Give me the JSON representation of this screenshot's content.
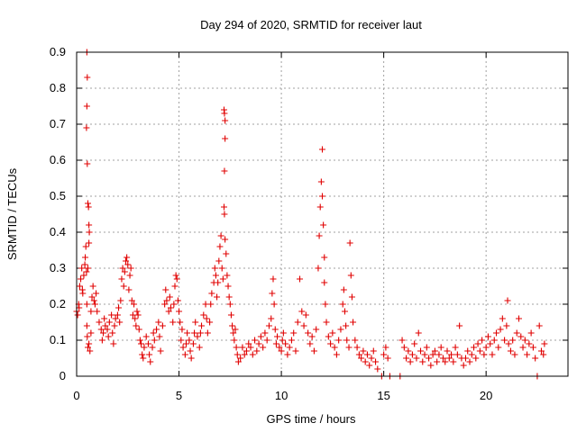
{
  "chart_data": {
    "type": "scatter",
    "title": "Day 294 of 2020, SRMTID for receiver laut",
    "xlabel": "GPS time / hours",
    "ylabel": "SRMTID / TECUs",
    "xlim": [
      0,
      24
    ],
    "ylim": [
      0,
      0.9
    ],
    "xticks": [
      0,
      5,
      10,
      15,
      20
    ],
    "xtick_labels": [
      "0",
      "5",
      "10",
      "15",
      "20"
    ],
    "yticks": [
      0,
      0.1,
      0.2,
      0.3,
      0.4,
      0.5,
      0.6,
      0.7,
      0.8,
      0.9
    ],
    "ytick_labels": [
      "0",
      "0.1",
      "0.2",
      "0.3",
      "0.4",
      "0.5",
      "0.6",
      "0.7",
      "0.8",
      "0.9"
    ],
    "grid": true,
    "marker": "plus",
    "color": "#e00000",
    "series": [
      {
        "name": "SRMTID",
        "points": [
          [
            0.0,
            0.18
          ],
          [
            0.05,
            0.17
          ],
          [
            0.1,
            0.2
          ],
          [
            0.12,
            0.19
          ],
          [
            0.15,
            0.25
          ],
          [
            0.2,
            0.27
          ],
          [
            0.25,
            0.3
          ],
          [
            0.28,
            0.24
          ],
          [
            0.3,
            0.23
          ],
          [
            0.35,
            0.28
          ],
          [
            0.4,
            0.31
          ],
          [
            0.42,
            0.33
          ],
          [
            0.45,
            0.36
          ],
          [
            0.48,
            0.29
          ],
          [
            0.5,
            0.9
          ],
          [
            0.52,
            0.83
          ],
          [
            0.5,
            0.75
          ],
          [
            0.48,
            0.69
          ],
          [
            0.52,
            0.59
          ],
          [
            0.55,
            0.48
          ],
          [
            0.58,
            0.47
          ],
          [
            0.6,
            0.42
          ],
          [
            0.62,
            0.4
          ],
          [
            0.6,
            0.37
          ],
          [
            0.55,
            0.3
          ],
          [
            0.5,
            0.2
          ],
          [
            0.5,
            0.14
          ],
          [
            0.52,
            0.11
          ],
          [
            0.55,
            0.08
          ],
          [
            0.6,
            0.09
          ],
          [
            0.65,
            0.07
          ],
          [
            0.7,
            0.12
          ],
          [
            0.7,
            0.18
          ],
          [
            0.75,
            0.22
          ],
          [
            0.8,
            0.25
          ],
          [
            0.85,
            0.21
          ],
          [
            0.9,
            0.2
          ],
          [
            0.95,
            0.23
          ],
          [
            1.0,
            0.18
          ],
          [
            1.1,
            0.15
          ],
          [
            1.2,
            0.13
          ],
          [
            1.25,
            0.1
          ],
          [
            1.3,
            0.12
          ],
          [
            1.35,
            0.16
          ],
          [
            1.4,
            0.14
          ],
          [
            1.5,
            0.13
          ],
          [
            1.55,
            0.11
          ],
          [
            1.6,
            0.15
          ],
          [
            1.7,
            0.17
          ],
          [
            1.75,
            0.12
          ],
          [
            1.8,
            0.09
          ],
          [
            1.85,
            0.14
          ],
          [
            1.9,
            0.16
          ],
          [
            2.0,
            0.17
          ],
          [
            2.05,
            0.19
          ],
          [
            2.1,
            0.15
          ],
          [
            2.15,
            0.21
          ],
          [
            2.2,
            0.27
          ],
          [
            2.25,
            0.3
          ],
          [
            2.3,
            0.25
          ],
          [
            2.35,
            0.29
          ],
          [
            2.4,
            0.32
          ],
          [
            2.45,
            0.33
          ],
          [
            2.5,
            0.31
          ],
          [
            2.55,
            0.24
          ],
          [
            2.6,
            0.28
          ],
          [
            2.65,
            0.3
          ],
          [
            2.7,
            0.21
          ],
          [
            2.75,
            0.17
          ],
          [
            2.8,
            0.2
          ],
          [
            2.85,
            0.16
          ],
          [
            2.9,
            0.14
          ],
          [
            2.95,
            0.18
          ],
          [
            3.0,
            0.17
          ],
          [
            3.05,
            0.13
          ],
          [
            3.1,
            0.1
          ],
          [
            3.15,
            0.09
          ],
          [
            3.2,
            0.06
          ],
          [
            3.25,
            0.05
          ],
          [
            3.3,
            0.08
          ],
          [
            3.4,
            0.11
          ],
          [
            3.5,
            0.09
          ],
          [
            3.55,
            0.06
          ],
          [
            3.6,
            0.04
          ],
          [
            3.7,
            0.08
          ],
          [
            3.75,
            0.12
          ],
          [
            3.8,
            0.1
          ],
          [
            3.9,
            0.13
          ],
          [
            4.0,
            0.15
          ],
          [
            4.05,
            0.11
          ],
          [
            4.1,
            0.07
          ],
          [
            4.2,
            0.14
          ],
          [
            4.3,
            0.2
          ],
          [
            4.35,
            0.24
          ],
          [
            4.4,
            0.21
          ],
          [
            4.5,
            0.18
          ],
          [
            4.55,
            0.22
          ],
          [
            4.6,
            0.19
          ],
          [
            4.7,
            0.15
          ],
          [
            4.75,
            0.2
          ],
          [
            4.8,
            0.25
          ],
          [
            4.85,
            0.28
          ],
          [
            4.9,
            0.27
          ],
          [
            4.95,
            0.21
          ],
          [
            5.0,
            0.18
          ],
          [
            5.05,
            0.15
          ],
          [
            5.1,
            0.1
          ],
          [
            5.15,
            0.13
          ],
          [
            5.2,
            0.08
          ],
          [
            5.3,
            0.06
          ],
          [
            5.35,
            0.09
          ],
          [
            5.4,
            0.12
          ],
          [
            5.5,
            0.1
          ],
          [
            5.55,
            0.07
          ],
          [
            5.6,
            0.05
          ],
          [
            5.7,
            0.09
          ],
          [
            5.75,
            0.12
          ],
          [
            5.8,
            0.15
          ],
          [
            5.9,
            0.11
          ],
          [
            6.0,
            0.08
          ],
          [
            6.05,
            0.12
          ],
          [
            6.1,
            0.14
          ],
          [
            6.2,
            0.17
          ],
          [
            6.3,
            0.2
          ],
          [
            6.35,
            0.16
          ],
          [
            6.4,
            0.12
          ],
          [
            6.5,
            0.15
          ],
          [
            6.55,
            0.2
          ],
          [
            6.6,
            0.23
          ],
          [
            6.7,
            0.26
          ],
          [
            6.75,
            0.3
          ],
          [
            6.8,
            0.28
          ],
          [
            6.85,
            0.22
          ],
          [
            6.9,
            0.26
          ],
          [
            6.95,
            0.32
          ],
          [
            7.0,
            0.36
          ],
          [
            7.05,
            0.39
          ],
          [
            7.1,
            0.3
          ],
          [
            7.15,
            0.27
          ],
          [
            7.2,
            0.74
          ],
          [
            7.22,
            0.73
          ],
          [
            7.25,
            0.71
          ],
          [
            7.25,
            0.66
          ],
          [
            7.22,
            0.57
          ],
          [
            7.2,
            0.47
          ],
          [
            7.22,
            0.45
          ],
          [
            7.25,
            0.38
          ],
          [
            7.3,
            0.34
          ],
          [
            7.35,
            0.28
          ],
          [
            7.4,
            0.25
          ],
          [
            7.45,
            0.22
          ],
          [
            7.5,
            0.2
          ],
          [
            7.55,
            0.17
          ],
          [
            7.6,
            0.14
          ],
          [
            7.65,
            0.12
          ],
          [
            7.7,
            0.1
          ],
          [
            7.75,
            0.13
          ],
          [
            7.8,
            0.08
          ],
          [
            7.85,
            0.06
          ],
          [
            7.9,
            0.04
          ],
          [
            8.0,
            0.05
          ],
          [
            8.1,
            0.08
          ],
          [
            8.2,
            0.06
          ],
          [
            8.3,
            0.07
          ],
          [
            8.4,
            0.09
          ],
          [
            8.5,
            0.08
          ],
          [
            8.6,
            0.06
          ],
          [
            8.7,
            0.1
          ],
          [
            8.8,
            0.07
          ],
          [
            8.9,
            0.09
          ],
          [
            9.0,
            0.11
          ],
          [
            9.1,
            0.08
          ],
          [
            9.2,
            0.12
          ],
          [
            9.3,
            0.1
          ],
          [
            9.4,
            0.14
          ],
          [
            9.5,
            0.16
          ],
          [
            9.55,
            0.23
          ],
          [
            9.6,
            0.27
          ],
          [
            9.65,
            0.2
          ],
          [
            9.7,
            0.13
          ],
          [
            9.75,
            0.09
          ],
          [
            9.8,
            0.11
          ],
          [
            9.9,
            0.08
          ],
          [
            10.0,
            0.07
          ],
          [
            10.05,
            0.1
          ],
          [
            10.1,
            0.12
          ],
          [
            10.2,
            0.09
          ],
          [
            10.3,
            0.06
          ],
          [
            10.4,
            0.08
          ],
          [
            10.5,
            0.1
          ],
          [
            10.6,
            0.12
          ],
          [
            10.7,
            0.07
          ],
          [
            10.8,
            0.15
          ],
          [
            10.9,
            0.27
          ],
          [
            11.0,
            0.18
          ],
          [
            11.1,
            0.14
          ],
          [
            11.2,
            0.17
          ],
          [
            11.3,
            0.12
          ],
          [
            11.4,
            0.09
          ],
          [
            11.5,
            0.11
          ],
          [
            11.6,
            0.07
          ],
          [
            11.7,
            0.13
          ],
          [
            11.8,
            0.3
          ],
          [
            11.85,
            0.39
          ],
          [
            11.9,
            0.47
          ],
          [
            11.95,
            0.54
          ],
          [
            12.0,
            0.63
          ],
          [
            12.0,
            0.5
          ],
          [
            12.05,
            0.42
          ],
          [
            12.1,
            0.33
          ],
          [
            12.1,
            0.26
          ],
          [
            12.15,
            0.2
          ],
          [
            12.2,
            0.15
          ],
          [
            12.3,
            0.11
          ],
          [
            12.4,
            0.09
          ],
          [
            12.5,
            0.12
          ],
          [
            12.6,
            0.08
          ],
          [
            12.7,
            0.06
          ],
          [
            12.8,
            0.1
          ],
          [
            12.9,
            0.13
          ],
          [
            13.0,
            0.2
          ],
          [
            13.05,
            0.24
          ],
          [
            13.1,
            0.18
          ],
          [
            13.15,
            0.14
          ],
          [
            13.2,
            0.1
          ],
          [
            13.3,
            0.08
          ],
          [
            13.35,
            0.37
          ],
          [
            13.4,
            0.28
          ],
          [
            13.45,
            0.22
          ],
          [
            13.5,
            0.15
          ],
          [
            13.6,
            0.1
          ],
          [
            13.7,
            0.08
          ],
          [
            13.8,
            0.06
          ],
          [
            13.9,
            0.05
          ],
          [
            14.0,
            0.07
          ],
          [
            14.1,
            0.04
          ],
          [
            14.2,
            0.06
          ],
          [
            14.3,
            0.03
          ],
          [
            14.4,
            0.05
          ],
          [
            14.5,
            0.07
          ],
          [
            14.6,
            0.04
          ],
          [
            14.7,
            0.02
          ],
          [
            14.9,
            0.0
          ],
          [
            15.0,
            0.06
          ],
          [
            15.1,
            0.08
          ],
          [
            15.2,
            0.05
          ],
          [
            15.3,
            0.0
          ],
          [
            15.8,
            0.0
          ],
          [
            15.9,
            0.1
          ],
          [
            16.0,
            0.08
          ],
          [
            16.1,
            0.05
          ],
          [
            16.2,
            0.07
          ],
          [
            16.3,
            0.04
          ],
          [
            16.4,
            0.06
          ],
          [
            16.5,
            0.09
          ],
          [
            16.6,
            0.05
          ],
          [
            16.7,
            0.12
          ],
          [
            16.8,
            0.07
          ],
          [
            16.9,
            0.04
          ],
          [
            17.0,
            0.06
          ],
          [
            17.1,
            0.08
          ],
          [
            17.2,
            0.05
          ],
          [
            17.3,
            0.03
          ],
          [
            17.4,
            0.06
          ],
          [
            17.5,
            0.07
          ],
          [
            17.6,
            0.04
          ],
          [
            17.7,
            0.06
          ],
          [
            17.8,
            0.08
          ],
          [
            17.9,
            0.05
          ],
          [
            18.0,
            0.04
          ],
          [
            18.1,
            0.07
          ],
          [
            18.2,
            0.05
          ],
          [
            18.3,
            0.06
          ],
          [
            18.4,
            0.04
          ],
          [
            18.5,
            0.08
          ],
          [
            18.6,
            0.06
          ],
          [
            18.7,
            0.14
          ],
          [
            18.8,
            0.05
          ],
          [
            18.9,
            0.03
          ],
          [
            19.0,
            0.05
          ],
          [
            19.1,
            0.07
          ],
          [
            19.2,
            0.04
          ],
          [
            19.3,
            0.06
          ],
          [
            19.4,
            0.08
          ],
          [
            19.5,
            0.05
          ],
          [
            19.6,
            0.09
          ],
          [
            19.7,
            0.07
          ],
          [
            19.8,
            0.1
          ],
          [
            19.9,
            0.06
          ],
          [
            20.0,
            0.08
          ],
          [
            20.1,
            0.11
          ],
          [
            20.2,
            0.09
          ],
          [
            20.3,
            0.06
          ],
          [
            20.4,
            0.1
          ],
          [
            20.5,
            0.12
          ],
          [
            20.6,
            0.08
          ],
          [
            20.7,
            0.13
          ],
          [
            20.8,
            0.16
          ],
          [
            20.9,
            0.1
          ],
          [
            21.0,
            0.14
          ],
          [
            21.05,
            0.21
          ],
          [
            21.1,
            0.09
          ],
          [
            21.2,
            0.07
          ],
          [
            21.3,
            0.1
          ],
          [
            21.4,
            0.06
          ],
          [
            21.5,
            0.12
          ],
          [
            21.6,
            0.16
          ],
          [
            21.7,
            0.11
          ],
          [
            21.8,
            0.08
          ],
          [
            21.9,
            0.1
          ],
          [
            22.0,
            0.06
          ],
          [
            22.1,
            0.09
          ],
          [
            22.2,
            0.12
          ],
          [
            22.3,
            0.08
          ],
          [
            22.4,
            0.05
          ],
          [
            22.5,
            0.0
          ],
          [
            22.6,
            0.14
          ],
          [
            22.7,
            0.07
          ],
          [
            22.8,
            0.06
          ],
          [
            22.85,
            0.09
          ]
        ]
      }
    ]
  }
}
